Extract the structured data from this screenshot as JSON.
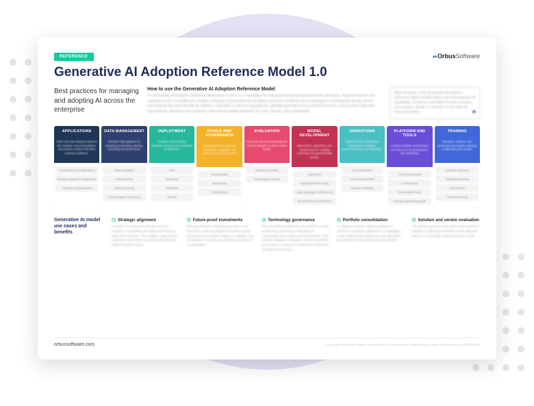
{
  "badge": "REFERENCE",
  "logo_a": "Orbus",
  "logo_b": "Software",
  "title": "Generative AI Adoption Reference Model 1.0",
  "intro_left": "Best practices for managing and adopting AI across the enterprise",
  "intro_mid_title": "How to use the Generative AI Adoption Reference Model",
  "intro_mid_body": "The Generative AI Adoption Reference Model aims to serve as a foundation for managing and adopting AI across the enterprise. Structured across key capability levels, it simplifies the complex landscape of generative AI and allows enterprise architects and technologists to strategically identify, govern, and integrate the most valuable AI solutions. It provides a common language for capability planning and investment decisions, ensuring they align both with business objectives and enterprise-wide interoperability standards for scale, security, and sustainability.",
  "intro_right": "Other iterations of the Generative AI Adoption Reference Model include further and more granular AI capabilities, as well as associated AI tools, products, and services. Speak to a member of our team for more information.",
  "columns": [
    {
      "head": "APPLICATIONS",
      "bg": "#1e3658",
      "desc": "Client and user-facing AI systems like chatbots, recommendations, and content creation that solve business problems.",
      "items": [
        "Conversational AI applications",
        "Decision-support AI applications",
        "Cognitive AI applications"
      ]
    },
    {
      "head": "DATA MANAGEMENT",
      "bg": "#2f3f6f",
      "desc": "Standard data pipelines for acquiring, processing, labeling, versioning and governance.",
      "items": [
        "Data acquisition",
        "Data labeling",
        "Data processing",
        "Data storage & versioning"
      ]
    },
    {
      "head": "DEPLOYMENT",
      "bg": "#26b89a",
      "desc": "Scalable model hosting, prediction serving, and monitoring infrastructure.",
      "items": [
        "APIs",
        "Monitoring",
        "Scalability",
        "Serving"
      ]
    },
    {
      "head": "ETHICS AND GOVERNANCE",
      "bg": "#f3b229",
      "desc": "Guidelines and controls for responsible, compliant, and sustainable AI development.",
      "items": [
        "Accountability",
        "Bias testing",
        "Transparency"
      ]
    },
    {
      "head": "EVALUATION",
      "bg": "#e84a6f",
      "desc": "Processes like benchmarking and metrics analysis to ensure model quality.",
      "items": [
        "Benchmark testing",
        "Performance metrics"
      ]
    },
    {
      "head": "MODEL DEVELOPMENT",
      "bg": "#c13253",
      "desc": "Approaches, algorithms, and architectures for creating performant and generalizable models.",
      "items": [
        "Algorithms",
        "Hyperparameter tuning",
        "Large language models (LLM)",
        "Neural network architectures"
      ]
    },
    {
      "head": "OPERATIONS",
      "bg": "#4abfc4",
      "desc": "Optimizing and maintaining production AI solutions performantly and cost-effectively.",
      "items": [
        "Cost optimization",
        "LLM prediction APIs",
        "Scaling monitoring"
      ]
    },
    {
      "head": "PLATFORM AND TOOLS",
      "bg": "#6a4dd6",
      "desc": "LLMOps software and services for end-to-end AI development and monitoring.",
      "items": [
        "LLM chaining tools",
        "LLMOps tools",
        "Orchestration tools",
        "Prompt programming tools"
      ]
    },
    {
      "head": "TRAINING",
      "bg": "#4168d8",
      "desc": "Hardware, software, and techniques like transfer learning to efficiently train models.",
      "items": [
        "Compute resources",
        "Distributed training",
        "Frameworks",
        "Transfer learning"
      ]
    }
  ],
  "bottom_title": "Generative AI model use cases and benefits",
  "bottom": [
    {
      "t": "Strategic alignment",
      "b": "Provides a framework to identify the most valuable AI capabilities that align with business goals and strategies. This enables organizations to prioritize and adopt AI solutions that drive the highest business value."
    },
    {
      "t": "Future-proof investments",
      "b": "Planning adoption roadmaps grounded in the reference model and aligned to business goals and taxonomy provides a degree of stability, even as solutions come and go, ensuring continuity of AI capabilities."
    },
    {
      "t": "Technology governance",
      "b": "The standardized taxonomy and definitions in the model allow governing AI development consistently across teams and departments. This enables enterprise integration and interoperability and ensures AI solutions comply with architecture principles and policies."
    },
    {
      "t": "Portfolio consolidation",
      "b": "As adoption evolves, mapping existing AI solutions or products against the AI capabilities model helps identify duplication and rationalize the portfolio by retaining the best-fit solutions."
    },
    {
      "t": "Solution and vendor evaluation",
      "b": "The vendor-agnostic model gives organizations a baseline to objectively evaluate vendor offerings based on functionality against business needs."
    }
  ],
  "footer_left": "orbussoftware.com",
  "footer_right": "© Copyright 2024 Orbus Software. Orbus Infinity™ is a trademark of Seattle Software Limited. All rights reserved. FL/REF/0224"
}
